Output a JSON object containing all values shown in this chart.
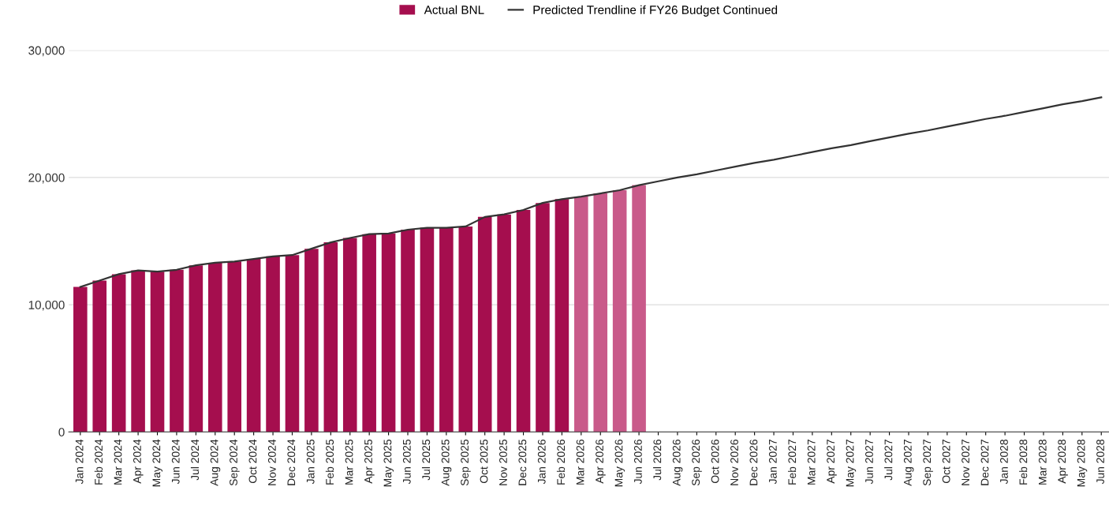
{
  "chart_data": {
    "type": "bar",
    "categories": [
      "Jan 2024",
      "Feb 2024",
      "Mar 2024",
      "Apr 2024",
      "May 2024",
      "Jun 2024",
      "Jul 2024",
      "Aug 2024",
      "Sep 2024",
      "Oct 2024",
      "Nov 2024",
      "Dec 2024",
      "Jan 2025",
      "Feb 2025",
      "Mar 2025",
      "Apr 2025",
      "May 2025",
      "Jun 2025",
      "Jul 2025",
      "Aug 2025",
      "Sep 2025",
      "Oct 2025",
      "Nov 2025",
      "Dec 2025",
      "Jan 2026",
      "Feb 2026",
      "Mar 2026",
      "Apr 2026",
      "May 2026",
      "Jun 2026",
      "Jul 2026",
      "Aug 2026",
      "Sep 2026",
      "Oct 2026",
      "Nov 2026",
      "Dec 2026",
      "Jan 2027",
      "Feb 2027",
      "Mar 2027",
      "Apr 2027",
      "May 2027",
      "Jun 2027",
      "Jul 2027",
      "Aug 2027",
      "Sep 2027",
      "Oct 2027",
      "Nov 2027",
      "Dec 2027",
      "Jan 2028",
      "Feb 2028",
      "Mar 2028",
      "Apr 2028",
      "May 2028",
      "Jun 2028"
    ],
    "series": [
      {
        "name": "Actual BNL",
        "color": "#a50e4e",
        "colors": [
          "#a50e4e",
          "#a50e4e",
          "#a50e4e",
          "#a50e4e",
          "#a50e4e",
          "#a50e4e",
          "#a50e4e",
          "#a50e4e",
          "#a50e4e",
          "#a50e4e",
          "#a50e4e",
          "#a50e4e",
          "#a50e4e",
          "#a50e4e",
          "#a50e4e",
          "#a50e4e",
          "#a50e4e",
          "#a50e4e",
          "#a50e4e",
          "#a50e4e",
          "#a50e4e",
          "#a50e4e",
          "#a50e4e",
          "#a50e4e",
          "#a50e4e",
          "#a50e4e",
          "#c95a8a",
          "#c95a8a",
          "#c95a8a",
          "#c95a8a",
          null,
          null,
          null,
          null,
          null,
          null,
          null,
          null,
          null,
          null,
          null,
          null,
          null,
          null,
          null,
          null,
          null,
          null,
          null,
          null,
          null,
          null,
          null,
          null
        ],
        "values": [
          11400,
          11900,
          12400,
          12700,
          12600,
          12750,
          13100,
          13300,
          13400,
          13600,
          13800,
          13900,
          14400,
          14900,
          15250,
          15550,
          15600,
          15900,
          16050,
          16050,
          16150,
          16900,
          17100,
          17450,
          18000,
          18300,
          18500,
          18750,
          19000,
          19400,
          null,
          null,
          null,
          null,
          null,
          null,
          null,
          null,
          null,
          null,
          null,
          null,
          null,
          null,
          null,
          null,
          null,
          null,
          null,
          null,
          null,
          null,
          null,
          null
        ]
      },
      {
        "name": "Predicted Trendline if FY26 Budget Continued",
        "type": "line",
        "color": "#333333",
        "values": [
          11400,
          11900,
          12400,
          12700,
          12600,
          12750,
          13100,
          13300,
          13400,
          13600,
          13800,
          13900,
          14400,
          14900,
          15250,
          15550,
          15600,
          15900,
          16050,
          16050,
          16150,
          16900,
          17100,
          17450,
          18000,
          18300,
          18500,
          18750,
          19000,
          19400,
          19700,
          20000,
          20250,
          20550,
          20850,
          21150,
          21400,
          21700,
          22000,
          22300,
          22550,
          22850,
          23150,
          23450,
          23700,
          24000,
          24300,
          24600,
          24850,
          25150,
          25450,
          25750,
          26000,
          26300
        ]
      }
    ],
    "ylim": [
      0,
      30000
    ],
    "yticks": [
      {
        "value": 0,
        "label": "0"
      },
      {
        "value": 10000,
        "label": "10,000"
      },
      {
        "value": 20000,
        "label": "20,000"
      },
      {
        "value": 30000,
        "label": "30,000"
      }
    ],
    "grid": "y",
    "legend": "top",
    "marker": "none",
    "line_style": "solid"
  }
}
